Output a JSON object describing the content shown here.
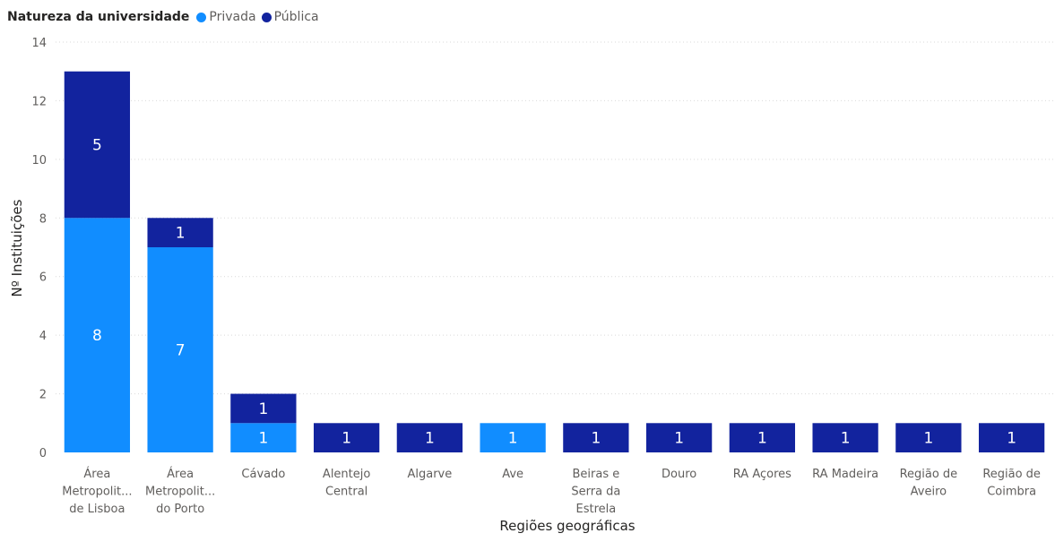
{
  "legend": {
    "title": "Natureza da universidade",
    "items": [
      {
        "label": "Privada",
        "color": "#118DFF"
      },
      {
        "label": "Pública",
        "color": "#12239E"
      }
    ]
  },
  "chart_data": {
    "type": "bar",
    "stacked": true,
    "xlabel": "Regiões geográficas",
    "ylabel": "Nº Instituições",
    "ylim": [
      0,
      14
    ],
    "yticks": [
      0,
      2,
      4,
      6,
      8,
      10,
      12,
      14
    ],
    "grid": true,
    "legend_position": "top-left",
    "categories": [
      [
        "Área",
        "Metropolit...",
        "de Lisboa"
      ],
      [
        "Área",
        "Metropolit...",
        "do Porto"
      ],
      [
        "Cávado"
      ],
      [
        "Alentejo",
        "Central"
      ],
      [
        "Algarve"
      ],
      [
        "Ave"
      ],
      [
        "Beiras e",
        "Serra da",
        "Estrela"
      ],
      [
        "Douro"
      ],
      [
        "RA Açores"
      ],
      [
        "RA Madeira"
      ],
      [
        "Região de",
        "Aveiro"
      ],
      [
        "Região de",
        "Coimbra"
      ]
    ],
    "series": [
      {
        "name": "Privada",
        "color": "#118DFF",
        "values": [
          8,
          7,
          1,
          0,
          0,
          1,
          0,
          0,
          0,
          0,
          0,
          0
        ]
      },
      {
        "name": "Pública",
        "color": "#12239E",
        "values": [
          5,
          1,
          1,
          1,
          1,
          0,
          1,
          1,
          1,
          1,
          1,
          1
        ]
      }
    ]
  }
}
